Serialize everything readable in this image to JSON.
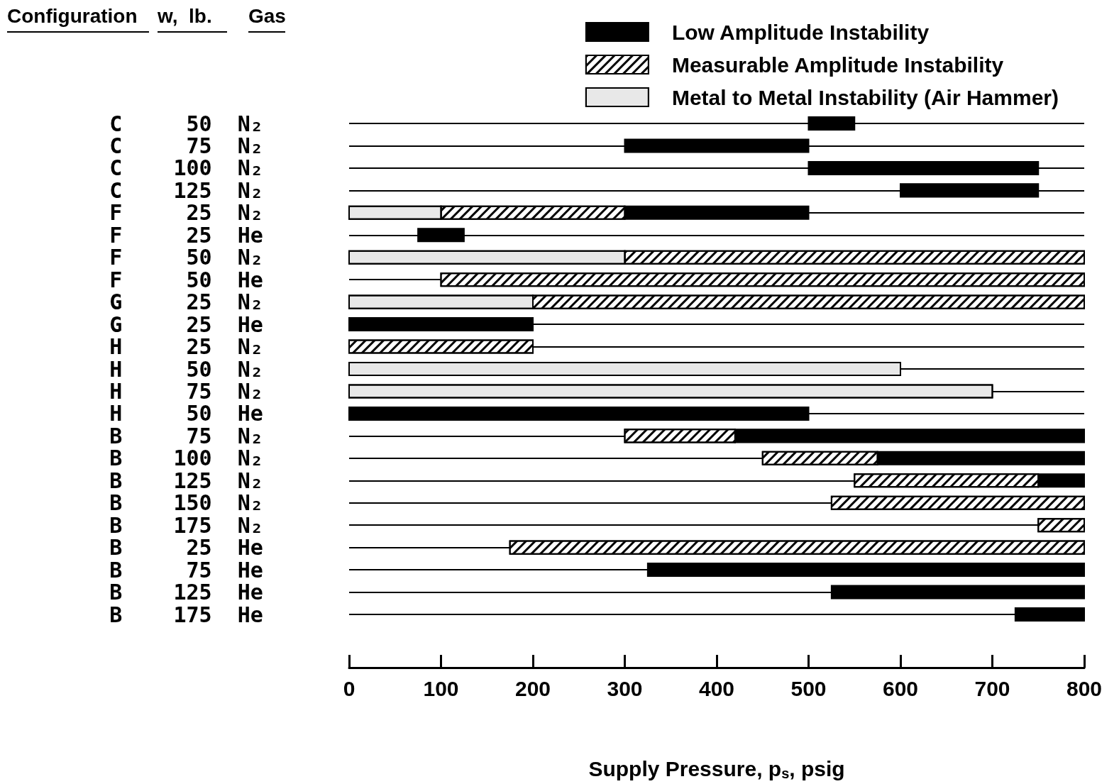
{
  "chart_data": {
    "type": "bar",
    "orientation": "horizontal",
    "xlabel": "Supply Pressure, p$_{s}$, psig",
    "annotations": [
      "Configuration",
      "w,  lb.",
      "Gas"
    ],
    "categories": [
      "C 50 N₂",
      "C 75 N₂",
      "C 100 N₂",
      "C 125 N₂",
      "F 25 N₂",
      "F 25 He",
      "F 50 N₂",
      "F 50 He",
      "G 25 N₂",
      "G 25 He",
      "H 25 N₂",
      "H 50 N₂",
      "H 75 N₂",
      "H 50 He",
      "B 75 N₂",
      "B 100 N₂",
      "B 125 N₂",
      "B 150 N₂",
      "B 175 N₂",
      "B 25 He",
      "B 75 He",
      "B 125 He",
      "B 175 He"
    ],
    "series": [
      {
        "name": "Low Amplitude Instability",
        "color": "#000000",
        "base": [
          500,
          300,
          500,
          600,
          300,
          75,
          null,
          null,
          null,
          0,
          null,
          null,
          null,
          0,
          420,
          575,
          750,
          null,
          null,
          null,
          325,
          525,
          725
        ],
        "values": [
          50,
          200,
          250,
          150,
          200,
          50,
          null,
          null,
          null,
          200,
          null,
          null,
          null,
          500,
          380,
          225,
          50,
          null,
          null,
          null,
          475,
          275,
          75
        ]
      },
      {
        "name": "Measurable Amplitude Instability",
        "color": "#ffffff",
        "base": [
          null,
          null,
          null,
          null,
          100,
          null,
          300,
          100,
          200,
          null,
          0,
          null,
          null,
          null,
          300,
          450,
          550,
          525,
          750,
          175,
          null,
          null,
          null
        ],
        "values": [
          null,
          null,
          null,
          null,
          200,
          null,
          500,
          700,
          600,
          null,
          200,
          null,
          null,
          null,
          120,
          125,
          200,
          275,
          50,
          625,
          null,
          null,
          null
        ]
      },
      {
        "name": "Metal to Metal Instability (Air Hammer)",
        "color": "#e8e8e8",
        "base": [
          null,
          null,
          null,
          null,
          0,
          null,
          0,
          null,
          0,
          null,
          null,
          0,
          0,
          null,
          null,
          null,
          null,
          null,
          null,
          null,
          null,
          null,
          null
        ],
        "values": [
          null,
          null,
          null,
          null,
          100,
          null,
          300,
          null,
          200,
          null,
          null,
          600,
          700,
          null,
          null,
          null,
          null,
          null,
          null,
          null,
          null,
          null,
          null
        ]
      }
    ],
    "xlim": [
      0,
      800
    ],
    "xticks": [
      0,
      100,
      200,
      300,
      400,
      500,
      600,
      700,
      800
    ],
    "grid": "y",
    "legend": "top right"
  }
}
